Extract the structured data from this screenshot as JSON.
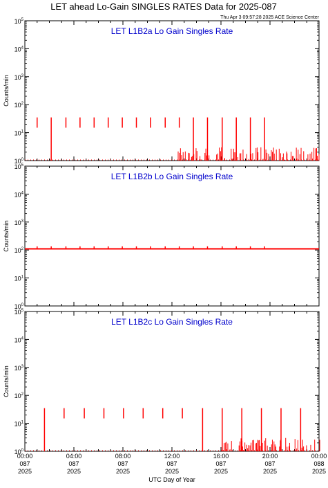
{
  "page": {
    "title": "LET ahead Lo-Gain SINGLES RATES Data for 2025-087",
    "timestamp": "Thu Apr  3 09:57:28 2025 ACE Science Center",
    "xlabel": "UTC Day of Year"
  },
  "colors": {
    "data": "#ff0000",
    "panel_title": "#0000cc",
    "axes": "#000000"
  },
  "chart_data": [
    {
      "type": "line",
      "title": "LET L1B2a Lo Gain Singles Rate",
      "ylabel": "Counts/min",
      "yscale": "log",
      "ylim": [
        1,
        100000
      ],
      "yticks": [
        {
          "e": 0,
          "label": "10",
          "exp": "0"
        },
        {
          "e": 1,
          "label": "10",
          "exp": "1"
        },
        {
          "e": 2,
          "label": "10",
          "exp": "2"
        },
        {
          "e": 3,
          "label": "10",
          "exp": "3"
        },
        {
          "e": 4,
          "label": "10",
          "exp": "4"
        },
        {
          "e": 5,
          "label": "10",
          "exp": "5"
        }
      ],
      "xlim": [
        0,
        24
      ],
      "series": [
        {
          "baseline": 1,
          "spikes": [
            {
              "x": 1.0,
              "top": 35,
              "bottom": 15
            },
            {
              "x": 2.15,
              "top": 35,
              "bottom": 1
            },
            {
              "x": 3.35,
              "top": 35,
              "bottom": 15
            },
            {
              "x": 4.5,
              "top": 35,
              "bottom": 15
            },
            {
              "x": 5.65,
              "top": 35,
              "bottom": 15
            },
            {
              "x": 6.8,
              "top": 35,
              "bottom": 15
            },
            {
              "x": 7.95,
              "top": 35,
              "bottom": 15
            },
            {
              "x": 9.1,
              "top": 35,
              "bottom": 15
            },
            {
              "x": 10.25,
              "top": 35,
              "bottom": 15
            },
            {
              "x": 11.45,
              "top": 35,
              "bottom": 15
            },
            {
              "x": 12.6,
              "top": 35,
              "bottom": 15
            },
            {
              "x": 13.75,
              "top": 35,
              "bottom": 1
            },
            {
              "x": 14.9,
              "top": 35,
              "bottom": 1
            },
            {
              "x": 16.1,
              "top": 35,
              "bottom": 1
            },
            {
              "x": 17.25,
              "top": 35,
              "bottom": 1
            },
            {
              "x": 18.4,
              "top": 35,
              "bottom": 1
            },
            {
              "x": 19.55,
              "top": 35,
              "bottom": 1
            }
          ],
          "noise_start": 12.5,
          "noise_max": 3
        }
      ]
    },
    {
      "type": "line",
      "title": "LET L1B2b Lo Gain Singles Rate",
      "ylabel": "Counts/min",
      "yscale": "log",
      "ylim": [
        1,
        100000
      ],
      "yticks": [
        {
          "e": 0,
          "label": "10",
          "exp": "0"
        },
        {
          "e": 1,
          "label": "10",
          "exp": "1"
        },
        {
          "e": 2,
          "label": "10",
          "exp": "2"
        },
        {
          "e": 3,
          "label": "10",
          "exp": "3"
        },
        {
          "e": 4,
          "label": "10",
          "exp": "4"
        },
        {
          "e": 5,
          "label": "10",
          "exp": "5"
        }
      ],
      "xlim": [
        0,
        24
      ],
      "series": [
        {
          "baseline": 110,
          "spikes": [
            {
              "x": 1.0,
              "top": 135,
              "bottom": 110
            },
            {
              "x": 2.15,
              "top": 135,
              "bottom": 110
            },
            {
              "x": 3.35,
              "top": 135,
              "bottom": 110
            },
            {
              "x": 4.5,
              "top": 135,
              "bottom": 110
            },
            {
              "x": 5.65,
              "top": 135,
              "bottom": 110
            },
            {
              "x": 6.8,
              "top": 135,
              "bottom": 110
            },
            {
              "x": 7.95,
              "top": 135,
              "bottom": 110
            },
            {
              "x": 9.1,
              "top": 135,
              "bottom": 110
            },
            {
              "x": 10.25,
              "top": 135,
              "bottom": 110
            },
            {
              "x": 11.45,
              "top": 135,
              "bottom": 110
            },
            {
              "x": 12.6,
              "top": 135,
              "bottom": 110
            },
            {
              "x": 13.75,
              "top": 135,
              "bottom": 110
            },
            {
              "x": 14.9,
              "top": 135,
              "bottom": 110
            },
            {
              "x": 16.1,
              "top": 135,
              "bottom": 110
            },
            {
              "x": 17.25,
              "top": 135,
              "bottom": 110
            },
            {
              "x": 18.4,
              "top": 135,
              "bottom": 110
            },
            {
              "x": 19.55,
              "top": 135,
              "bottom": 110
            }
          ],
          "noise_start": 24,
          "noise_max": 1
        }
      ]
    },
    {
      "type": "line",
      "title": "LET L1B2c Lo Gain Singles Rate",
      "ylabel": "Counts/min",
      "yscale": "log",
      "ylim": [
        1,
        100000
      ],
      "yticks": [
        {
          "e": 0,
          "label": "10",
          "exp": "0"
        },
        {
          "e": 1,
          "label": "10",
          "exp": "1"
        },
        {
          "e": 2,
          "label": "10",
          "exp": "2"
        },
        {
          "e": 3,
          "label": "10",
          "exp": "3"
        },
        {
          "e": 4,
          "label": "10",
          "exp": "4"
        },
        {
          "e": 5,
          "label": "10",
          "exp": "5"
        }
      ],
      "xlim": [
        0,
        24
      ],
      "xticks": [
        {
          "x": 0,
          "l1": "00:00",
          "l2": "087",
          "l3": "2025"
        },
        {
          "x": 4,
          "l1": "04:00",
          "l2": "087",
          "l3": "2025"
        },
        {
          "x": 8,
          "l1": "08:00",
          "l2": "087",
          "l3": "2025"
        },
        {
          "x": 12,
          "l1": "12:00",
          "l2": "087",
          "l3": "2025"
        },
        {
          "x": 16,
          "l1": "16:00",
          "l2": "087",
          "l3": "2025"
        },
        {
          "x": 20,
          "l1": "20:00",
          "l2": "087",
          "l3": "2025"
        },
        {
          "x": 24,
          "l1": "00:00",
          "l2": "088",
          "l3": "2025"
        }
      ],
      "series": [
        {
          "baseline": 1,
          "spikes": [
            {
              "x": 1.6,
              "top": 35,
              "bottom": 1
            },
            {
              "x": 3.2,
              "top": 35,
              "bottom": 15
            },
            {
              "x": 4.85,
              "top": 35,
              "bottom": 15
            },
            {
              "x": 6.45,
              "top": 35,
              "bottom": 15
            },
            {
              "x": 8.05,
              "top": 35,
              "bottom": 15
            },
            {
              "x": 9.65,
              "top": 35,
              "bottom": 15
            },
            {
              "x": 11.25,
              "top": 35,
              "bottom": 15
            },
            {
              "x": 12.85,
              "top": 35,
              "bottom": 15
            },
            {
              "x": 14.5,
              "top": 35,
              "bottom": 1
            },
            {
              "x": 16.1,
              "top": 35,
              "bottom": 1
            },
            {
              "x": 17.7,
              "top": 35,
              "bottom": 1
            },
            {
              "x": 19.3,
              "top": 35,
              "bottom": 1
            },
            {
              "x": 20.9,
              "top": 35,
              "bottom": 1
            },
            {
              "x": 22.5,
              "top": 35,
              "bottom": 1
            }
          ],
          "noise_start": 16.0,
          "noise_max": 3
        }
      ]
    }
  ]
}
